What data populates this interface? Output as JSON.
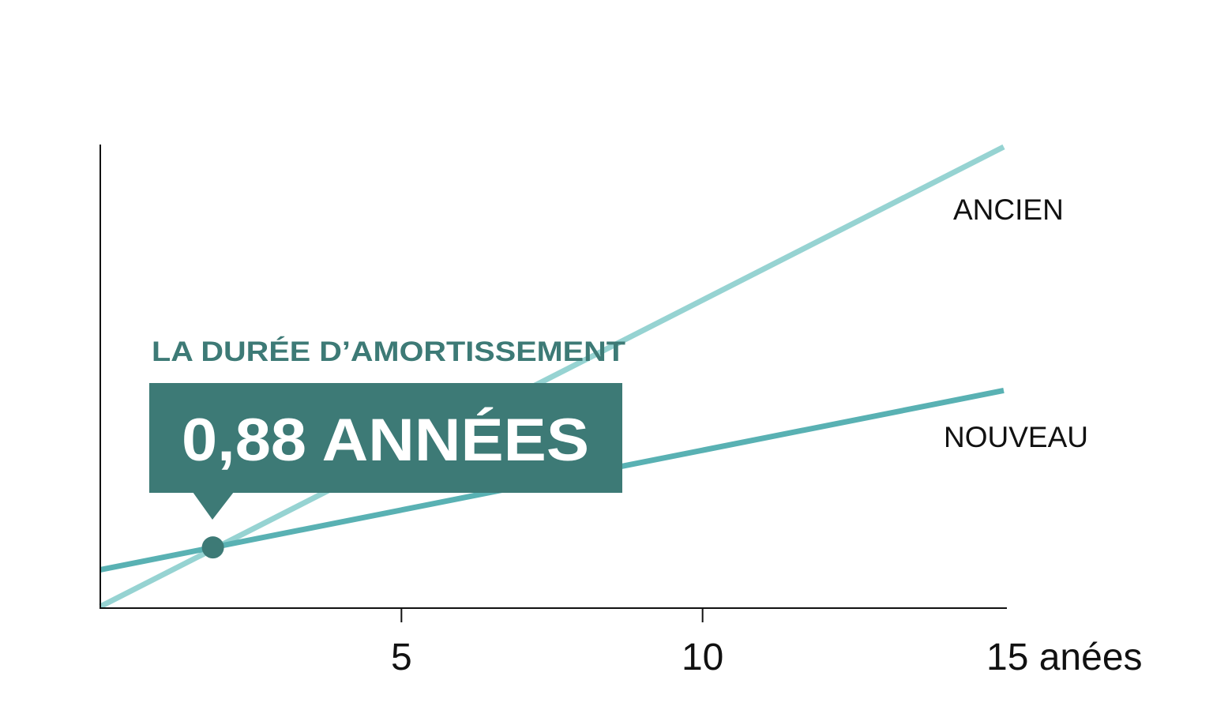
{
  "chart_data": {
    "type": "line",
    "x_ticks": [
      5,
      10,
      15
    ],
    "x_tick_labels": [
      "5",
      "10",
      "15 anées"
    ],
    "xlim": [
      0,
      15
    ],
    "ylim": [
      0,
      100
    ],
    "grid": false,
    "series": [
      {
        "name": "ANCIEN",
        "x": [
          0,
          15
        ],
        "y": [
          0,
          100
        ],
        "color": "#96d3d2"
      },
      {
        "name": "NOUVEAU",
        "x": [
          0,
          15
        ],
        "y": [
          8,
          47
        ],
        "color": "#59b1b3"
      }
    ],
    "annotation": {
      "heading": "LA DURÉE D’AMORTISSEMENT",
      "value": "0,88 ANNÉES",
      "marker_x": 1.87,
      "heading_color": "#3d7a76",
      "box_color": "#3d7a76"
    }
  }
}
